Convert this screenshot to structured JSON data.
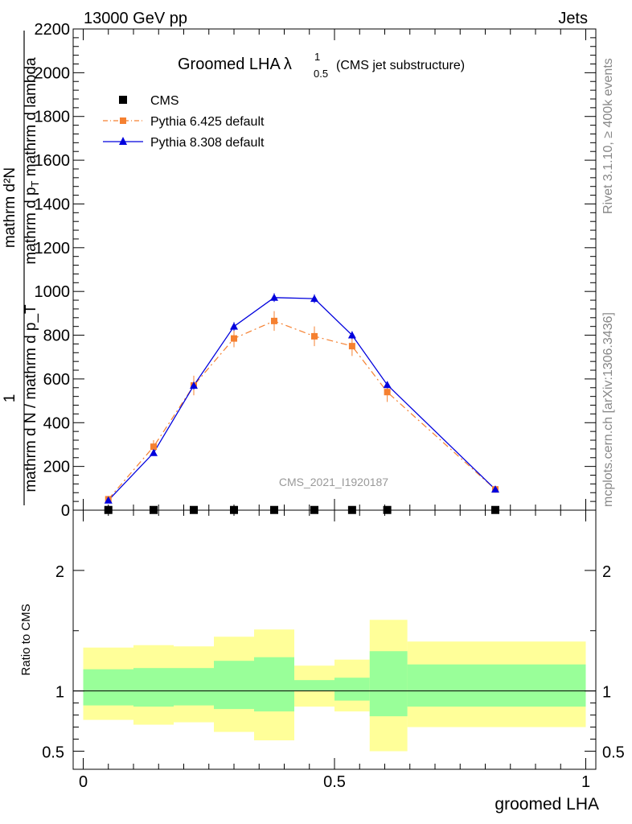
{
  "header": {
    "left": "13000 GeV pp",
    "right": "Jets",
    "side_top": "Rivet 3.1.10, ≥ 400k events",
    "side_bottom": "mcplots.cern.ch [arXiv:1306.3436]",
    "watermark": "CMS_2021_I1920187"
  },
  "chart_data": [
    {
      "type": "scatter",
      "title": "Groomed LHA",
      "title_symbol": "λ",
      "title_sup": "1",
      "title_sub": "0.5",
      "title_note": "(CMS jet substructure)",
      "ylabel": "1 / mathrm d N / mathrm d p_T  mathrm d^2N / mathrm d p_T mathrm d lambda",
      "xlim": [
        -0.02,
        1.02
      ],
      "ylim": [
        0,
        2200
      ],
      "y_ticks": [
        0,
        200,
        400,
        600,
        800,
        1000,
        1200,
        1400,
        1600,
        1800,
        2000,
        2200
      ],
      "y_tick_labels": [
        "0",
        "200",
        "400",
        "600",
        "800",
        "1000",
        "1200",
        "1400",
        "1600",
        "1800",
        "2000",
        "2200"
      ],
      "legend_position": "top-left",
      "x": [
        0.05,
        0.14,
        0.22,
        0.3,
        0.38,
        0.46,
        0.535,
        0.605,
        0.82
      ],
      "series": [
        {
          "name": "CMS",
          "color": "#000000",
          "marker": "square",
          "values": [
            1,
            1,
            1,
            1,
            1,
            1,
            1,
            1,
            1
          ]
        },
        {
          "name": "Pythia 6.425 default",
          "color": "#f58030",
          "marker": "square",
          "line": "dashdot",
          "values": [
            50,
            290,
            570,
            785,
            865,
            795,
            750,
            540,
            95
          ],
          "errors": [
            15,
            30,
            45,
            40,
            45,
            45,
            45,
            45,
            15
          ]
        },
        {
          "name": "Pythia 8.308 default",
          "color": "#0000dd",
          "marker": "triangle",
          "line": "solid",
          "values": [
            45,
            262,
            570,
            840,
            972,
            967,
            800,
            573,
            95
          ],
          "errors": [
            8,
            12,
            18,
            20,
            20,
            20,
            18,
            15,
            8
          ]
        }
      ]
    },
    {
      "type": "area",
      "ylabel": "Ratio to CMS",
      "xlabel": "groomed LHA",
      "xlim": [
        -0.02,
        1.02
      ],
      "ylim": [
        0.35,
        2.5
      ],
      "x_ticks": [
        0,
        0.5,
        1
      ],
      "x_tick_labels": [
        "0",
        "0.5",
        "1"
      ],
      "y_ticks": [
        0.5,
        1,
        2
      ],
      "y_tick_labels": [
        "0.5",
        "1",
        "2"
      ],
      "bin_edges": [
        0.0,
        0.1,
        0.18,
        0.26,
        0.34,
        0.42,
        0.5,
        0.57,
        0.645,
        1.0
      ],
      "band_inner": {
        "color": "#99ff99",
        "low": [
          0.88,
          0.87,
          0.88,
          0.85,
          0.83,
          1.0,
          0.92,
          0.79,
          0.87
        ],
        "high": [
          1.18,
          1.19,
          1.19,
          1.25,
          1.28,
          1.09,
          1.11,
          1.33,
          1.22
        ]
      },
      "band_outer": {
        "color": "#ffff99",
        "low": [
          0.76,
          0.72,
          0.74,
          0.66,
          0.59,
          0.87,
          0.83,
          0.5,
          0.7
        ],
        "high": [
          1.36,
          1.38,
          1.37,
          1.45,
          1.51,
          1.21,
          1.26,
          1.59,
          1.41
        ]
      },
      "reference": 1
    }
  ]
}
